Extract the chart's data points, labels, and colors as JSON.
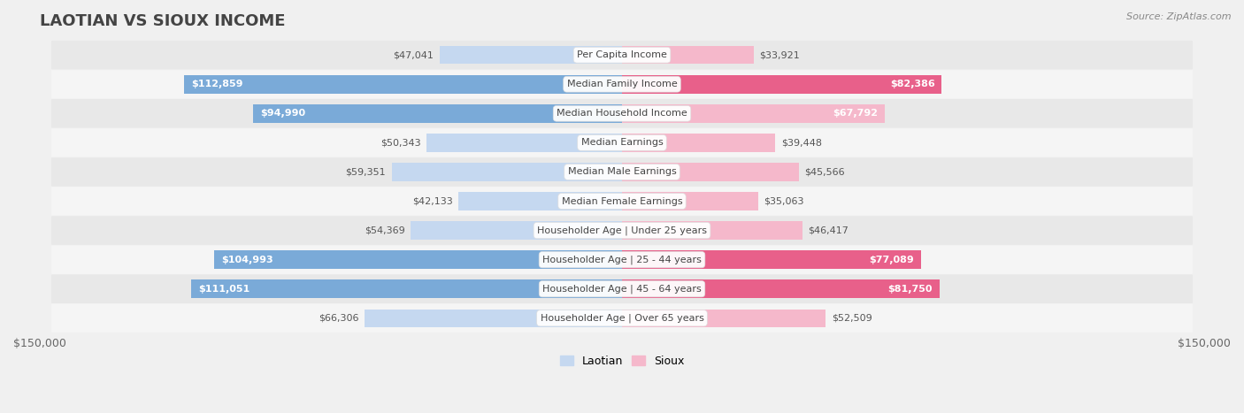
{
  "title": "LAOTIAN VS SIOUX INCOME",
  "source": "Source: ZipAtlas.com",
  "categories": [
    "Per Capita Income",
    "Median Family Income",
    "Median Household Income",
    "Median Earnings",
    "Median Male Earnings",
    "Median Female Earnings",
    "Householder Age | Under 25 years",
    "Householder Age | 25 - 44 years",
    "Householder Age | 45 - 64 years",
    "Householder Age | Over 65 years"
  ],
  "laotian_values": [
    47041,
    112859,
    94990,
    50343,
    59351,
    42133,
    54369,
    104993,
    111051,
    66306
  ],
  "sioux_values": [
    33921,
    82386,
    67792,
    39448,
    45566,
    35063,
    46417,
    77089,
    81750,
    52509
  ],
  "laotian_labels": [
    "$47,041",
    "$112,859",
    "$94,990",
    "$50,343",
    "$59,351",
    "$42,133",
    "$54,369",
    "$104,993",
    "$111,051",
    "$66,306"
  ],
  "sioux_labels": [
    "$33,921",
    "$82,386",
    "$67,792",
    "$39,448",
    "$45,566",
    "$35,063",
    "$46,417",
    "$77,089",
    "$81,750",
    "$52,509"
  ],
  "max_value": 150000,
  "laotian_color_light": "#C5D8F0",
  "laotian_color_strong": "#7AAAD8",
  "sioux_color_light": "#F5B8CB",
  "sioux_color_strong": "#E8608A",
  "laotian_strong_threshold": 80000,
  "sioux_strong_threshold": 70000,
  "bg_color": "#f0f0f0",
  "row_bg_odd": "#e8e8e8",
  "row_bg_even": "#f5f5f5",
  "title_color": "#444444",
  "label_dark_color": "#555555",
  "label_light_color": "#ffffff",
  "title_fontsize": 13,
  "label_fontsize": 8.0,
  "cat_fontsize": 8.0,
  "bar_height": 0.62,
  "inside_label_threshold_laotian": 70000,
  "inside_label_threshold_sioux": 60000,
  "legend_laotian": "Laotian",
  "legend_sioux": "Sioux"
}
